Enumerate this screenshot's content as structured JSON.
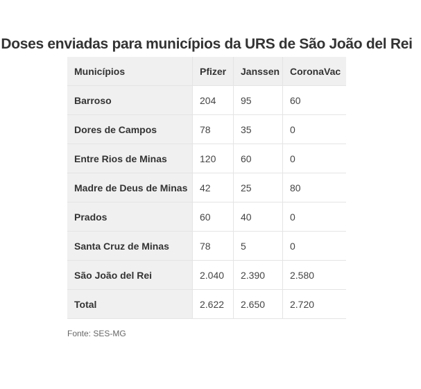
{
  "title": "Doses enviadas para municípios da URS de São João del Rei",
  "table": {
    "headers": [
      "Municípios",
      "Pfizer",
      "Janssen",
      "CoronaVac"
    ],
    "rows": [
      [
        "Barroso",
        "204",
        "95",
        "60"
      ],
      [
        "Dores de Campos",
        "78",
        "35",
        "0"
      ],
      [
        "Entre Rios de Minas",
        "120",
        "60",
        "0"
      ],
      [
        "Madre de Deus de Minas",
        "42",
        "25",
        "80"
      ],
      [
        "Prados",
        "60",
        "40",
        "0"
      ],
      [
        "Santa Cruz de Minas",
        "78",
        "5",
        "0"
      ],
      [
        "São João del Rei",
        "2.040",
        "2.390",
        "2.580"
      ],
      [
        "Total",
        "2.622",
        "2.650",
        "2.720"
      ]
    ]
  },
  "source": "Fonte: SES-MG"
}
